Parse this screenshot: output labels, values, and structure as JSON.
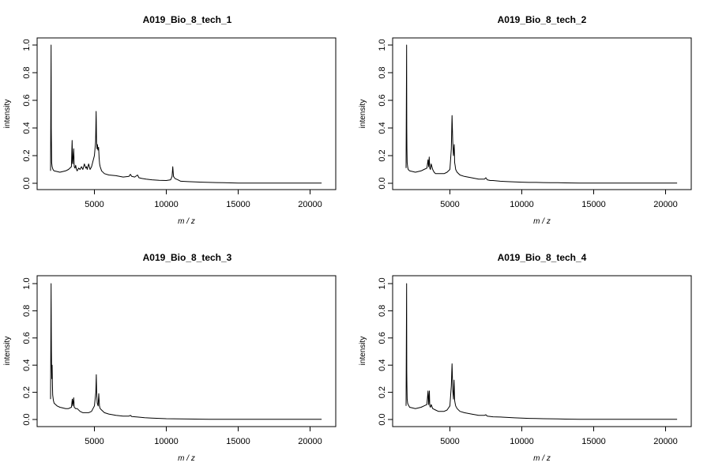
{
  "chart_data": [
    {
      "type": "line",
      "title": "A019_Bio_8_tech_1",
      "xlabel": "m / z",
      "ylabel": "intensity",
      "xlim": [
        1800,
        20800
      ],
      "ylim": [
        0,
        1.0
      ],
      "xticks": [
        "5000",
        "10000",
        "15000",
        "20000"
      ],
      "yticks": [
        "0.0",
        "0.2",
        "0.4",
        "0.6",
        "0.8",
        "1.0"
      ],
      "grid": false,
      "series": [
        {
          "color": "#000000",
          "x": [
            1950,
            1990,
            2000,
            2010,
            2030,
            2060,
            2090,
            2120,
            2150,
            2200,
            2400,
            2600,
            2800,
            3000,
            3200,
            3400,
            3450,
            3480,
            3500,
            3560,
            3600,
            3650,
            3700,
            3750,
            3800,
            3900,
            4000,
            4100,
            4200,
            4300,
            4400,
            4450,
            4500,
            4600,
            4700,
            4800,
            4900,
            5000,
            5080,
            5120,
            5150,
            5180,
            5210,
            5250,
            5290,
            5330,
            5360,
            5400,
            5500,
            5700,
            6000,
            6500,
            7000,
            7400,
            7500,
            7600,
            7800,
            8000,
            8100,
            8300,
            8600,
            9000,
            9500,
            10000,
            10300,
            10400,
            10450,
            10500,
            10600,
            10800,
            11000,
            11500,
            12000,
            12500,
            13000,
            13500,
            14000,
            14500,
            15000,
            16000,
            17000,
            18000,
            19000,
            20000,
            20800
          ],
          "y": [
            0.09,
            1.0,
            0.4,
            0.3,
            0.15,
            0.12,
            0.11,
            0.1,
            0.095,
            0.09,
            0.085,
            0.08,
            0.085,
            0.09,
            0.1,
            0.12,
            0.31,
            0.15,
            0.14,
            0.25,
            0.12,
            0.11,
            0.13,
            0.1,
            0.09,
            0.11,
            0.1,
            0.12,
            0.1,
            0.14,
            0.11,
            0.12,
            0.1,
            0.14,
            0.1,
            0.12,
            0.16,
            0.2,
            0.3,
            0.52,
            0.3,
            0.25,
            0.28,
            0.24,
            0.26,
            0.18,
            0.14,
            0.12,
            0.09,
            0.07,
            0.06,
            0.055,
            0.045,
            0.05,
            0.065,
            0.05,
            0.045,
            0.06,
            0.04,
            0.035,
            0.03,
            0.025,
            0.022,
            0.02,
            0.025,
            0.05,
            0.12,
            0.05,
            0.035,
            0.025,
            0.015,
            0.012,
            0.01,
            0.008,
            0.006,
            0.005,
            0.004,
            0.003,
            0.002,
            0.002,
            0.001,
            0.001,
            0.001,
            0.001,
            0.001
          ]
        }
      ]
    },
    {
      "type": "line",
      "title": "A019_Bio_8_tech_2",
      "xlabel": "m / z",
      "ylabel": "intensity",
      "xlim": [
        1800,
        20800
      ],
      "ylim": [
        0,
        1.0
      ],
      "xticks": [
        "5000",
        "10000",
        "15000",
        "20000"
      ],
      "yticks": [
        "0.0",
        "0.2",
        "0.4",
        "0.6",
        "0.8",
        "1.0"
      ],
      "grid": false,
      "series": [
        {
          "color": "#000000",
          "x": [
            1950,
            1990,
            2000,
            2010,
            2030,
            2060,
            2100,
            2150,
            2200,
            2400,
            2600,
            2800,
            3000,
            3200,
            3400,
            3480,
            3520,
            3560,
            3600,
            3650,
            3700,
            3800,
            3900,
            4000,
            4200,
            4400,
            4600,
            4800,
            5000,
            5100,
            5150,
            5200,
            5250,
            5300,
            5330,
            5360,
            5400,
            5500,
            5700,
            6000,
            6500,
            7000,
            7400,
            7500,
            7600,
            7800,
            8000,
            8500,
            9000,
            9500,
            10000,
            10500,
            11000,
            11500,
            12000,
            12500,
            13000,
            14000,
            15000,
            16000,
            17000,
            18000,
            19000,
            20000,
            20800
          ],
          "y": [
            0.11,
            1.0,
            0.4,
            0.25,
            0.15,
            0.12,
            0.1,
            0.095,
            0.09,
            0.085,
            0.08,
            0.085,
            0.09,
            0.1,
            0.11,
            0.17,
            0.12,
            0.19,
            0.11,
            0.1,
            0.14,
            0.1,
            0.08,
            0.07,
            0.07,
            0.07,
            0.07,
            0.08,
            0.1,
            0.25,
            0.49,
            0.3,
            0.2,
            0.28,
            0.15,
            0.13,
            0.1,
            0.08,
            0.06,
            0.05,
            0.04,
            0.03,
            0.03,
            0.04,
            0.025,
            0.02,
            0.02,
            0.015,
            0.012,
            0.01,
            0.008,
            0.006,
            0.006,
            0.005,
            0.004,
            0.004,
            0.003,
            0.002,
            0.001,
            0.001,
            0.001,
            0.001,
            0.001,
            0.001,
            0.001
          ]
        }
      ]
    },
    {
      "type": "line",
      "title": "A019_Bio_8_tech_3",
      "xlabel": "m / z",
      "ylabel": "intensity",
      "xlim": [
        1800,
        20800
      ],
      "ylim": [
        0,
        1.0
      ],
      "xticks": [
        "5000",
        "10000",
        "15000",
        "20000"
      ],
      "yticks": [
        "0.0",
        "0.2",
        "0.4",
        "0.6",
        "0.8",
        "1.0"
      ],
      "grid": false,
      "series": [
        {
          "color": "#000000",
          "x": [
            1950,
            1990,
            2000,
            2010,
            2020,
            2040,
            2060,
            2080,
            2100,
            2150,
            2200,
            2400,
            2600,
            2800,
            3000,
            3200,
            3400,
            3460,
            3500,
            3560,
            3600,
            3700,
            3800,
            4000,
            4200,
            4400,
            4600,
            4800,
            5000,
            5100,
            5130,
            5160,
            5200,
            5260,
            5300,
            5350,
            5400,
            5500,
            5700,
            6000,
            6500,
            7000,
            7400,
            7500,
            7600,
            8000,
            8500,
            9000,
            9500,
            10000,
            11000,
            12000,
            13000,
            14000,
            15000,
            16000,
            17000,
            18000,
            19000,
            20000,
            20800
          ],
          "y": [
            0.15,
            1.0,
            0.68,
            0.5,
            0.4,
            0.3,
            0.4,
            0.25,
            0.18,
            0.14,
            0.12,
            0.1,
            0.09,
            0.085,
            0.08,
            0.08,
            0.09,
            0.15,
            0.1,
            0.16,
            0.09,
            0.08,
            0.08,
            0.06,
            0.05,
            0.05,
            0.05,
            0.06,
            0.1,
            0.2,
            0.33,
            0.18,
            0.12,
            0.1,
            0.19,
            0.1,
            0.08,
            0.07,
            0.05,
            0.04,
            0.03,
            0.025,
            0.025,
            0.03,
            0.022,
            0.018,
            0.013,
            0.01,
            0.008,
            0.006,
            0.004,
            0.003,
            0.002,
            0.001,
            0.001,
            0.001,
            0.001,
            0.001,
            0.001,
            0.001,
            0.001
          ]
        }
      ]
    },
    {
      "type": "line",
      "title": "A019_Bio_8_tech_4",
      "xlabel": "m / z",
      "ylabel": "intensity",
      "xlim": [
        1800,
        20800
      ],
      "ylim": [
        0,
        1.0
      ],
      "xticks": [
        "5000",
        "10000",
        "15000",
        "20000"
      ],
      "yticks": [
        "0.0",
        "0.2",
        "0.4",
        "0.6",
        "0.8",
        "1.0"
      ],
      "grid": false,
      "series": [
        {
          "color": "#000000",
          "x": [
            1950,
            1990,
            2000,
            2010,
            2030,
            2060,
            2100,
            2150,
            2200,
            2400,
            2600,
            2800,
            3000,
            3200,
            3400,
            3480,
            3520,
            3570,
            3600,
            3650,
            3700,
            3800,
            4000,
            4200,
            4400,
            4600,
            4800,
            5000,
            5100,
            5150,
            5200,
            5250,
            5290,
            5330,
            5360,
            5400,
            5500,
            5700,
            6000,
            6500,
            7000,
            7400,
            7500,
            7600,
            8000,
            8500,
            9000,
            9500,
            10000,
            10500,
            11000,
            11500,
            12000,
            12500,
            13000,
            14000,
            15000,
            16000,
            17000,
            18000,
            19000,
            20000,
            20800
          ],
          "y": [
            0.1,
            1.0,
            0.35,
            0.25,
            0.15,
            0.12,
            0.11,
            0.1,
            0.09,
            0.085,
            0.08,
            0.085,
            0.09,
            0.1,
            0.11,
            0.21,
            0.11,
            0.21,
            0.1,
            0.09,
            0.11,
            0.08,
            0.07,
            0.06,
            0.06,
            0.06,
            0.07,
            0.1,
            0.25,
            0.41,
            0.22,
            0.15,
            0.29,
            0.14,
            0.12,
            0.1,
            0.08,
            0.06,
            0.05,
            0.04,
            0.03,
            0.03,
            0.035,
            0.025,
            0.02,
            0.018,
            0.015,
            0.012,
            0.01,
            0.008,
            0.007,
            0.006,
            0.005,
            0.004,
            0.003,
            0.002,
            0.001,
            0.001,
            0.001,
            0.001,
            0.001,
            0.001,
            0.001
          ]
        }
      ]
    }
  ]
}
